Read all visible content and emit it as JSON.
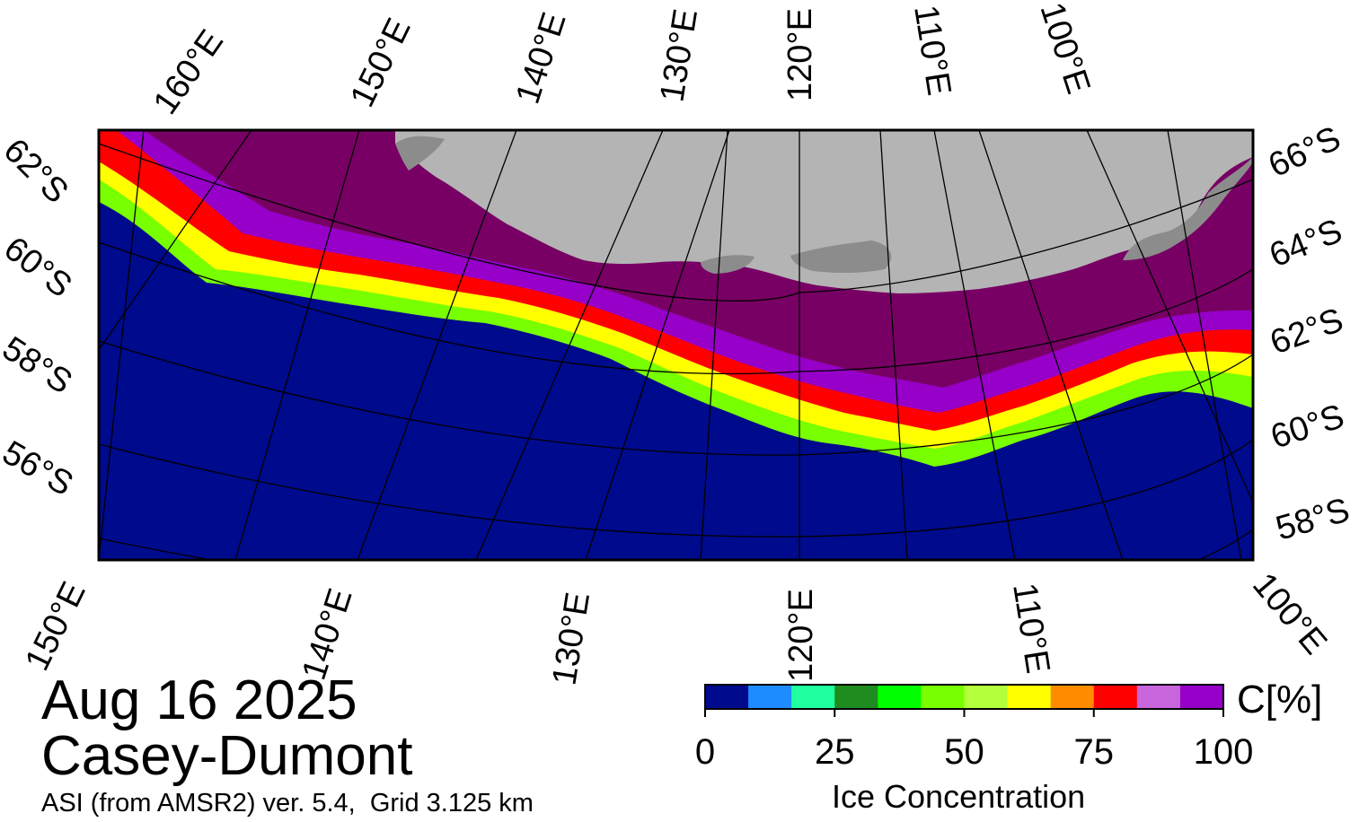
{
  "title": {
    "date": "Aug 16 2025",
    "region": "Casey-Dumont",
    "product": "ASI (from AMSR2) ver. 5.4,  Grid 3.125 km"
  },
  "map": {
    "top_longitude_labels": [
      "160°E",
      "150°E",
      "140°E",
      "130°E",
      "120°E",
      "110°E",
      "100°E"
    ],
    "bottom_longitude_labels": [
      "150°E",
      "140°E",
      "130°E",
      "120°E",
      "110°E",
      "100°E"
    ],
    "left_latitude_labels": [
      "62°S",
      "60°S",
      "58°S",
      "56°S"
    ],
    "right_latitude_labels": [
      "66°S",
      "64°S",
      "62°S",
      "60°S",
      "58°S"
    ],
    "colors": {
      "ocean": "#000a8c",
      "continent": "#b4b4b4",
      "ice_shelf": "#8c8c8c",
      "high_ice": "#780064",
      "graticule": "#000000"
    }
  },
  "colorbar": {
    "title": "Ice Concentration",
    "unit": "C[%]",
    "tick_labels": [
      "0",
      "25",
      "50",
      "75",
      "100"
    ],
    "tick_values": [
      0,
      25,
      50,
      75,
      100
    ],
    "min": 0,
    "max": 100,
    "colors": [
      "#000a8c",
      "#1e8cff",
      "#1effa0",
      "#1e8c1e",
      "#00ff00",
      "#78ff00",
      "#b4ff3c",
      "#ffff00",
      "#ff8c00",
      "#ff0000",
      "#c864dc",
      "#9600c8"
    ]
  }
}
